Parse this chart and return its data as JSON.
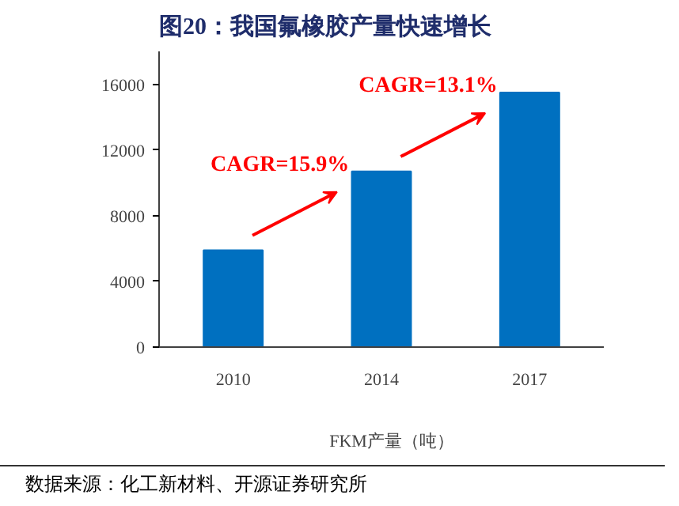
{
  "chart_data": {
    "type": "bar",
    "title": "图20：我国氟橡胶产量快速增长",
    "categories": [
      "2010",
      "2014",
      "2017"
    ],
    "series": [
      {
        "name": "FKM产量（吨）",
        "color": "#0070c0",
        "values": [
          5900,
          10700,
          15500
        ]
      }
    ],
    "ylim": [
      0,
      18000
    ],
    "yticks": [
      0,
      4000,
      8000,
      12000,
      16000
    ],
    "grid": false,
    "legend": "bottom",
    "annotations": [
      "CAGR=15.9%",
      "CAGR=13.1%",
      "数据来源：化工新材料、开源证券研究所"
    ]
  }
}
